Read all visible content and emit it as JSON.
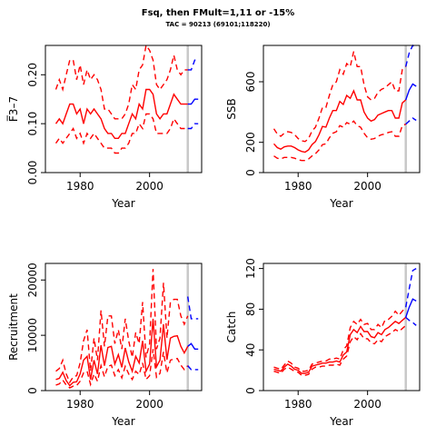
{
  "header": {
    "title": "Fsq, then FMult=1,11 or -15%",
    "subtitle": "TAC = 90213 (69101;118220)"
  },
  "colors": {
    "historic": "#ff0000",
    "forecast": "#0000ff",
    "marker_line": "#c8c8c8"
  },
  "marker_year": 2011,
  "chart_data": [
    {
      "id": "fbar",
      "type": "line",
      "xlabel": "Year",
      "ylabel": "F̅3–7",
      "xlim": [
        1970,
        2015
      ],
      "ylim": [
        0,
        0.26
      ],
      "xticks": [
        1980,
        2000
      ],
      "yticks": [
        "0.00",
        "0.10",
        "0.20"
      ],
      "x": [
        1973,
        1974,
        1975,
        1976,
        1977,
        1978,
        1979,
        1980,
        1981,
        1982,
        1983,
        1984,
        1985,
        1986,
        1987,
        1988,
        1989,
        1990,
        1991,
        1992,
        1993,
        1994,
        1995,
        1996,
        1997,
        1998,
        1999,
        2000,
        2001,
        2002,
        2003,
        2004,
        2005,
        2006,
        2007,
        2008,
        2009,
        2010,
        2011
      ],
      "series": [
        {
          "role": "estimate",
          "dash": false,
          "values": [
            0.1,
            0.11,
            0.1,
            0.12,
            0.14,
            0.14,
            0.12,
            0.13,
            0.1,
            0.13,
            0.12,
            0.13,
            0.12,
            0.11,
            0.09,
            0.08,
            0.08,
            0.07,
            0.07,
            0.08,
            0.08,
            0.1,
            0.12,
            0.11,
            0.14,
            0.13,
            0.17,
            0.17,
            0.16,
            0.12,
            0.11,
            0.12,
            0.12,
            0.14,
            0.16,
            0.15,
            0.14,
            0.14,
            0.14
          ]
        },
        {
          "role": "upper",
          "dash": true,
          "values": [
            0.17,
            0.19,
            0.17,
            0.2,
            0.23,
            0.23,
            0.19,
            0.22,
            0.18,
            0.21,
            0.19,
            0.2,
            0.19,
            0.17,
            0.13,
            0.13,
            0.12,
            0.11,
            0.11,
            0.11,
            0.12,
            0.14,
            0.18,
            0.17,
            0.21,
            0.22,
            0.26,
            0.25,
            0.23,
            0.18,
            0.17,
            0.18,
            0.19,
            0.21,
            0.24,
            0.21,
            0.2,
            0.21,
            0.21
          ]
        },
        {
          "role": "lower",
          "dash": true,
          "values": [
            0.06,
            0.07,
            0.06,
            0.07,
            0.08,
            0.09,
            0.07,
            0.08,
            0.06,
            0.08,
            0.07,
            0.08,
            0.07,
            0.06,
            0.05,
            0.05,
            0.05,
            0.04,
            0.04,
            0.05,
            0.05,
            0.06,
            0.08,
            0.08,
            0.1,
            0.09,
            0.12,
            0.12,
            0.11,
            0.08,
            0.08,
            0.08,
            0.08,
            0.09,
            0.11,
            0.1,
            0.09,
            0.09,
            0.09
          ]
        }
      ],
      "forecast_x": [
        2011,
        2012,
        2013,
        2014
      ],
      "forecast": [
        {
          "role": "estimate",
          "dash": false,
          "values": [
            0.14,
            0.14,
            0.15,
            0.15
          ]
        },
        {
          "role": "upper",
          "dash": true,
          "values": [
            0.21,
            0.21,
            0.23,
            0.23
          ]
        },
        {
          "role": "lower",
          "dash": true,
          "values": [
            0.09,
            0.09,
            0.1,
            0.1
          ]
        }
      ]
    },
    {
      "id": "ssb",
      "type": "line",
      "xlabel": "Year",
      "ylabel": "SSB",
      "xlim": [
        1970,
        2015
      ],
      "ylim": [
        0,
        840
      ],
      "xticks": [
        1980,
        2000
      ],
      "yticks": [
        "0",
        "200",
        "600"
      ],
      "x": [
        1973,
        1974,
        1975,
        1976,
        1977,
        1978,
        1979,
        1980,
        1981,
        1982,
        1983,
        1984,
        1985,
        1986,
        1987,
        1988,
        1989,
        1990,
        1991,
        1992,
        1993,
        1994,
        1995,
        1996,
        1997,
        1998,
        1999,
        2000,
        2001,
        2002,
        2003,
        2004,
        2005,
        2006,
        2007,
        2008,
        2009,
        2010,
        2011
      ],
      "series": [
        {
          "role": "estimate",
          "dash": false,
          "values": [
            190,
            165,
            155,
            170,
            175,
            175,
            165,
            150,
            140,
            135,
            150,
            185,
            205,
            250,
            305,
            300,
            360,
            410,
            410,
            470,
            450,
            510,
            490,
            540,
            480,
            480,
            400,
            360,
            340,
            350,
            380,
            390,
            400,
            410,
            410,
            360,
            360,
            460,
            480
          ]
        },
        {
          "role": "upper",
          "dash": true,
          "values": [
            290,
            255,
            240,
            260,
            270,
            265,
            250,
            225,
            210,
            205,
            225,
            275,
            300,
            360,
            430,
            430,
            510,
            580,
            600,
            680,
            650,
            720,
            700,
            800,
            700,
            700,
            580,
            500,
            480,
            490,
            530,
            550,
            560,
            580,
            600,
            540,
            540,
            680,
            700
          ]
        },
        {
          "role": "lower",
          "dash": true,
          "values": [
            110,
            95,
            90,
            100,
            100,
            100,
            95,
            85,
            80,
            80,
            90,
            110,
            125,
            150,
            185,
            190,
            230,
            260,
            270,
            310,
            300,
            330,
            320,
            340,
            310,
            300,
            260,
            230,
            220,
            225,
            240,
            250,
            255,
            265,
            270,
            240,
            240,
            310,
            320
          ]
        }
      ],
      "forecast_x": [
        2011,
        2012,
        2013,
        2014
      ],
      "forecast": [
        {
          "role": "estimate",
          "dash": false,
          "values": [
            480,
            545,
            585,
            570
          ]
        },
        {
          "role": "upper",
          "dash": true,
          "values": [
            700,
            790,
            840,
            820
          ]
        },
        {
          "role": "lower",
          "dash": true,
          "values": [
            320,
            340,
            360,
            345
          ]
        }
      ]
    },
    {
      "id": "recruitment",
      "type": "line",
      "xlabel": "Year",
      "ylabel": "Recruitment",
      "xlim": [
        1970,
        2015
      ],
      "ylim": [
        0,
        23000
      ],
      "xticks": [
        1980,
        2000
      ],
      "yticks": [
        "0",
        "10000",
        "20000"
      ],
      "x": [
        1973,
        1974,
        1975,
        1976,
        1977,
        1978,
        1979,
        1980,
        1981,
        1982,
        1983,
        1984,
        1985,
        1986,
        1987,
        1988,
        1989,
        1990,
        1991,
        1992,
        1993,
        1994,
        1995,
        1996,
        1997,
        1998,
        1999,
        2000,
        2001,
        2002,
        2003,
        2004,
        2005,
        2006,
        2007,
        2008,
        2009,
        2010,
        2011
      ],
      "series": [
        {
          "role": "estimate",
          "dash": false,
          "values": [
            2000,
            2200,
            3300,
            1800,
            900,
            1500,
            1600,
            3000,
            5500,
            6200,
            2000,
            5500,
            3000,
            8200,
            4500,
            7800,
            8000,
            4800,
            6500,
            4200,
            7700,
            5200,
            3500,
            6200,
            5000,
            9000,
            3500,
            4800,
            13000,
            4300,
            5500,
            12000,
            5600,
            9500,
            9800,
            9900,
            8000,
            6800,
            8000
          ]
        },
        {
          "role": "upper",
          "dash": true,
          "values": [
            3500,
            4000,
            5500,
            3000,
            1500,
            2500,
            2700,
            5000,
            9000,
            11000,
            3500,
            9500,
            5500,
            14500,
            8000,
            13500,
            13500,
            8500,
            11000,
            7500,
            13000,
            9000,
            6000,
            10500,
            8500,
            16000,
            6000,
            8500,
            22000,
            7500,
            9500,
            19500,
            9500,
            16000,
            16500,
            16500,
            13500,
            12000,
            13500
          ]
        },
        {
          "role": "lower",
          "dash": true,
          "values": [
            1000,
            1200,
            1900,
            1000,
            500,
            800,
            900,
            1700,
            3200,
            3500,
            1100,
            3000,
            1700,
            4500,
            2500,
            4400,
            4600,
            2700,
            3800,
            2300,
            4400,
            3000,
            2000,
            3500,
            2900,
            5000,
            2000,
            2700,
            7500,
            2400,
            3100,
            7000,
            3200,
            5500,
            5700,
            5800,
            4600,
            3800,
            4500
          ]
        }
      ],
      "forecast_x": [
        2011,
        2012,
        2013,
        2014
      ],
      "forecast": [
        {
          "role": "estimate",
          "dash": false,
          "values": [
            8000,
            8500,
            7500,
            7500
          ]
        },
        {
          "role": "upper",
          "dash": true,
          "values": [
            17000,
            13000,
            13000,
            13000
          ]
        },
        {
          "role": "lower",
          "dash": true,
          "values": [
            4500,
            3800,
            3800,
            3800
          ]
        }
      ]
    },
    {
      "id": "catch",
      "type": "line",
      "xlabel": "Year",
      "ylabel": "Catch",
      "xlim": [
        1970,
        2015
      ],
      "ylim": [
        0,
        125
      ],
      "xticks": [
        1980,
        2000
      ],
      "yticks": [
        "0",
        "40",
        "80",
        "120"
      ],
      "x": [
        1973,
        1974,
        1975,
        1976,
        1977,
        1978,
        1979,
        1980,
        1981,
        1982,
        1983,
        1984,
        1985,
        1986,
        1987,
        1988,
        1989,
        1990,
        1991,
        1992,
        1993,
        1994,
        1995,
        1996,
        1997,
        1998,
        1999,
        2000,
        2001,
        2002,
        2003,
        2004,
        2005,
        2006,
        2007,
        2008,
        2009,
        2010,
        2011
      ],
      "series": [
        {
          "role": "estimate",
          "dash": false,
          "values": [
            21,
            20,
            19,
            23,
            26,
            24,
            21,
            20,
            17,
            17,
            18,
            24,
            25,
            26,
            27,
            27,
            28,
            28,
            29,
            28,
            35,
            38,
            55,
            60,
            57,
            63,
            58,
            58,
            53,
            52,
            57,
            55,
            60,
            62,
            65,
            68,
            66,
            69,
            72
          ]
        },
        {
          "role": "upper",
          "dash": true,
          "values": [
            23,
            22,
            21,
            25,
            29,
            27,
            23,
            22,
            19,
            19,
            20,
            26,
            27,
            28,
            29,
            29,
            31,
            31,
            32,
            31,
            40,
            44,
            62,
            68,
            65,
            70,
            65,
            66,
            60,
            60,
            65,
            62,
            69,
            70,
            73,
            78,
            74,
            78,
            82
          ]
        },
        {
          "role": "lower",
          "dash": true,
          "values": [
            19,
            18,
            17,
            21,
            23,
            21,
            19,
            18,
            15,
            15,
            16,
            21,
            23,
            23,
            24,
            24,
            25,
            25,
            26,
            25,
            31,
            34,
            48,
            53,
            50,
            56,
            51,
            51,
            47,
            46,
            50,
            48,
            53,
            55,
            57,
            60,
            58,
            61,
            64
          ]
        }
      ],
      "forecast_x": [
        2011,
        2012,
        2013,
        2014
      ],
      "forecast": [
        {
          "role": "estimate",
          "dash": false,
          "values": [
            72,
            82,
            90,
            88
          ]
        },
        {
          "role": "upper",
          "dash": true,
          "values": [
            82,
            100,
            118,
            120
          ]
        },
        {
          "role": "lower",
          "dash": true,
          "values": [
            72,
            69,
            67,
            64
          ]
        }
      ]
    }
  ]
}
